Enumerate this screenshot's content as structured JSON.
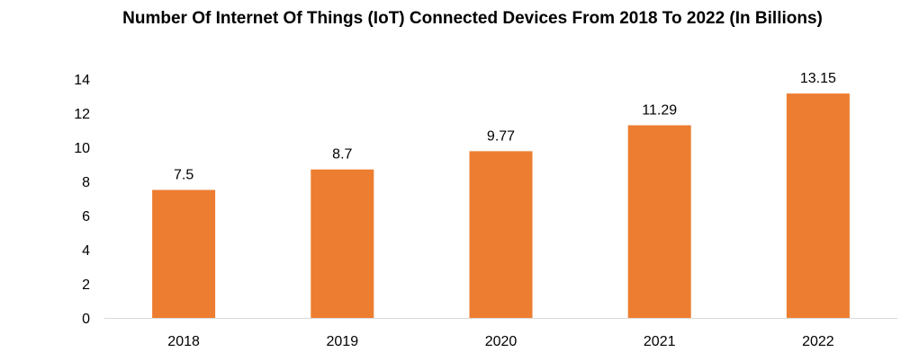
{
  "chart_data": {
    "type": "bar",
    "title": "Number Of Internet Of Things (IoT) Connected Devices From 2018 To 2022 (In Billions)",
    "xlabel": "",
    "ylabel": "",
    "categories": [
      "2018",
      "2019",
      "2020",
      "2021",
      "2022"
    ],
    "values": [
      7.5,
      8.7,
      9.77,
      11.29,
      13.15
    ],
    "data_labels": [
      "7.5",
      "8.7",
      "9.77",
      "11.29",
      "13.15"
    ],
    "ylim": [
      0,
      14
    ],
    "yticks": [
      0,
      2,
      4,
      6,
      8,
      10,
      12,
      14
    ],
    "grid": false,
    "legend": "none",
    "colors": {
      "bar": "#ED7D31",
      "axis": "#D9D9D9",
      "text": "#000000"
    }
  }
}
